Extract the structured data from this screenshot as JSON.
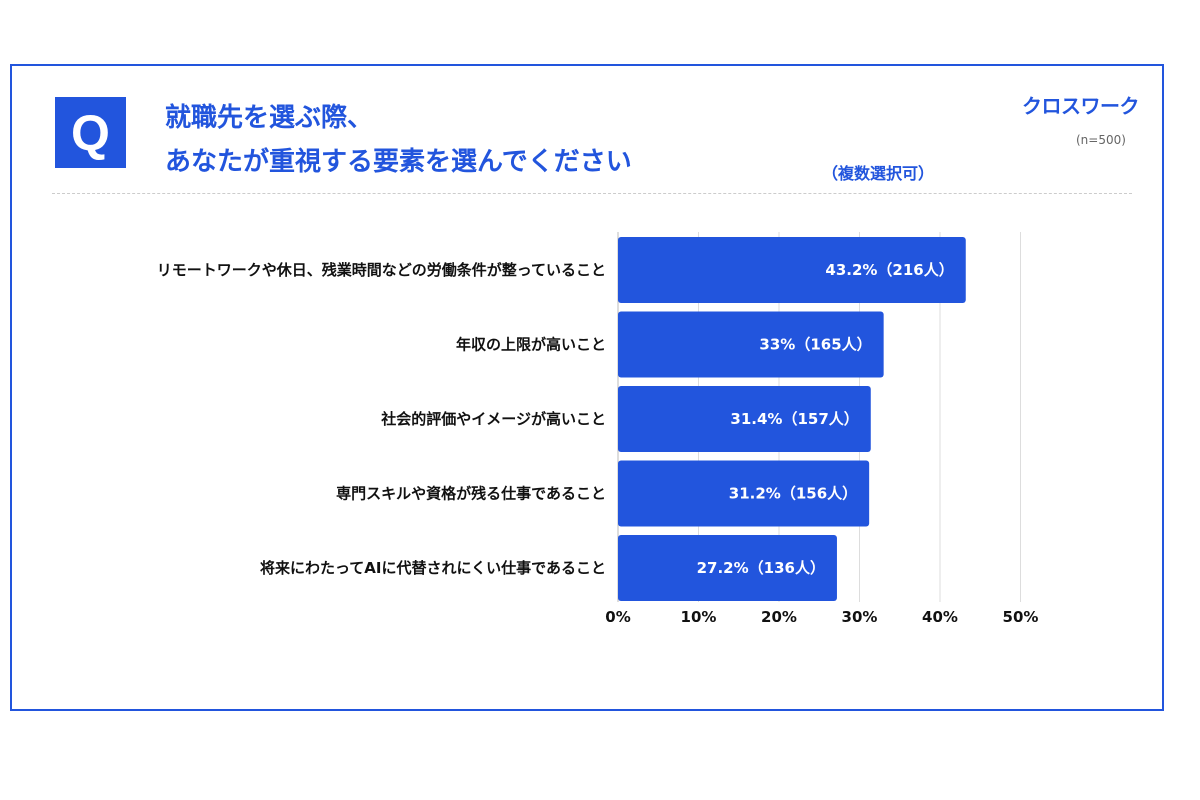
{
  "header": {
    "q_mark": "Q",
    "question_line1": "就職先を選ぶ際、",
    "question_line2": "あなたが重視する要素を選んでください",
    "note": "（複数選択可）",
    "brand": "クロスワーク",
    "sample_size": "(n=500)"
  },
  "colors": {
    "accent": "#2255dd",
    "bar": "#2255dd",
    "grid": "#dddddd"
  },
  "chart_data": {
    "type": "bar",
    "orientation": "horizontal",
    "categories": [
      "リモートワークや休日、残業時間などの労働条件が整っていること",
      "年収の上限が高いこと",
      "社会的評価やイメージが高いこと",
      "専門スキルや資格が残る仕事であること",
      "将来にわたってAIに代替されにくい仕事であること"
    ],
    "values": [
      43.2,
      33,
      31.4,
      31.2,
      27.2
    ],
    "data_labels": [
      "43.2%（216人）",
      "33%（165人）",
      "31.4%（157人）",
      "31.2%（156人）",
      "27.2%（136人）"
    ],
    "xlim": [
      0,
      50
    ],
    "x_ticks": [
      0,
      10,
      20,
      30,
      40,
      50
    ],
    "x_tick_labels": [
      "0%",
      "10%",
      "20%",
      "30%",
      "40%",
      "50%"
    ],
    "grid": true
  }
}
